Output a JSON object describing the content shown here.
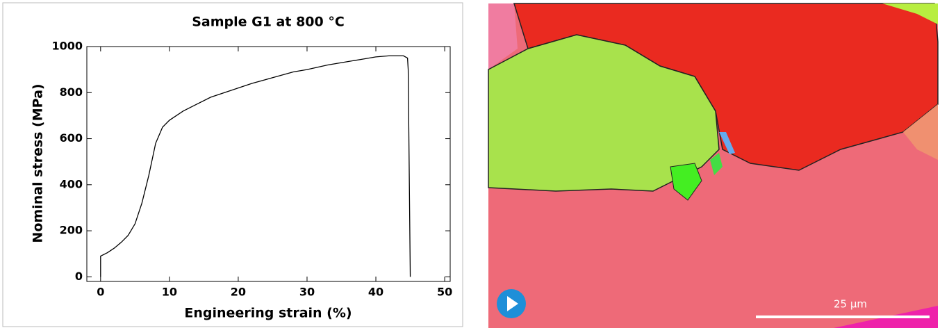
{
  "chart_data": {
    "type": "line",
    "title": "Sample G1 at 800 °C",
    "x_label": "Engineering strain (%)",
    "y_label": "Nominal stress (MPa)",
    "x": [
      0,
      0,
      1,
      2,
      3,
      4,
      5,
      6,
      7,
      8,
      9,
      10,
      11,
      12,
      14,
      16,
      18,
      20,
      22,
      25,
      28,
      30,
      33,
      36,
      38,
      40,
      42,
      44,
      44.6,
      44.7,
      45
    ],
    "values": [
      0,
      90,
      105,
      125,
      150,
      180,
      230,
      320,
      440,
      580,
      650,
      680,
      700,
      720,
      750,
      780,
      800,
      820,
      840,
      865,
      890,
      900,
      920,
      935,
      945,
      955,
      960,
      960,
      950,
      900,
      0
    ],
    "color": "#000000",
    "xlim": [
      -2,
      50.8
    ],
    "ylim": [
      -20,
      1000
    ],
    "xticks": [
      0,
      10,
      20,
      30,
      40,
      50
    ],
    "yticks": [
      0,
      200,
      400,
      600,
      800,
      1000
    ]
  },
  "image_overlay": {
    "scale_bar_label": "25 µm"
  }
}
